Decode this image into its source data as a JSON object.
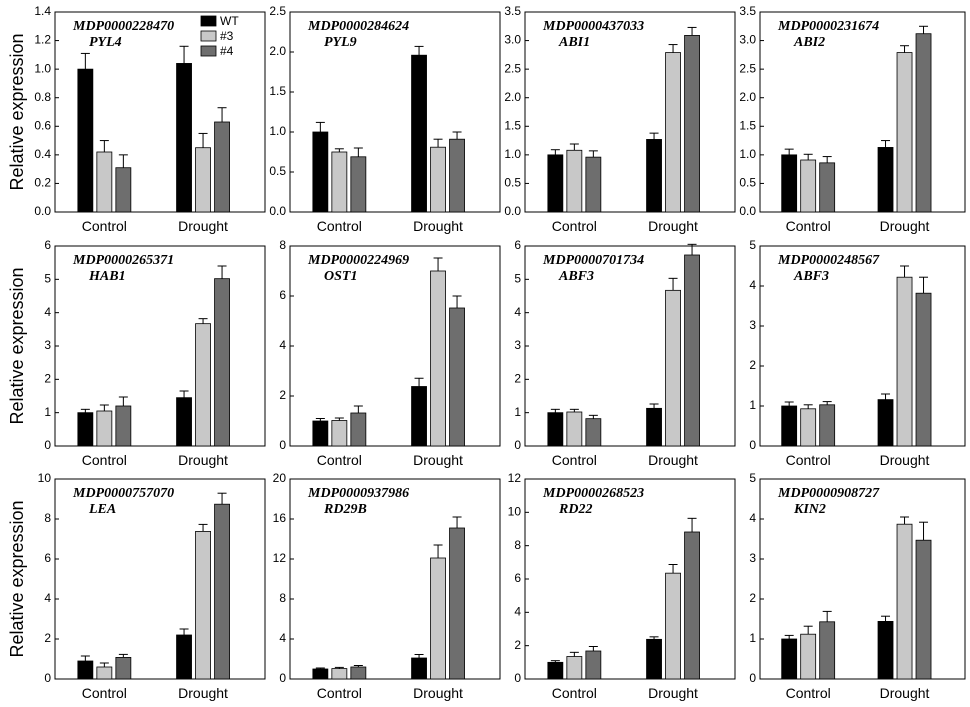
{
  "figure": {
    "ylabel": "Relative expression",
    "categories": [
      "Control",
      "Drought"
    ],
    "legend": [
      "WT",
      "#3",
      "#4"
    ],
    "colors": [
      "#000000",
      "#c8c8c8",
      "#6e6e6e"
    ]
  },
  "chart_data": [
    {
      "type": "bar",
      "gene_id": "MDP0000228470",
      "gene": "PYL4",
      "ylim": [
        0,
        1.4
      ],
      "yticks": [
        "0.0",
        "0.2",
        "0.4",
        "0.6",
        "0.8",
        "1.0",
        "1.2",
        "1.4"
      ],
      "categories": [
        "Control",
        "Drought"
      ],
      "series": [
        {
          "name": "WT",
          "values": [
            1.0,
            1.04
          ],
          "errors": [
            0.11,
            0.12
          ]
        },
        {
          "name": "#3",
          "values": [
            0.42,
            0.45
          ],
          "errors": [
            0.08,
            0.1
          ]
        },
        {
          "name": "#4",
          "values": [
            0.31,
            0.63
          ],
          "errors": [
            0.09,
            0.1
          ]
        }
      ]
    },
    {
      "type": "bar",
      "gene_id": "MDP0000284624",
      "gene": "PYL9",
      "ylim": [
        0,
        2.5
      ],
      "yticks": [
        "0.0",
        "0.5",
        "1.0",
        "1.5",
        "2.0",
        "2.5"
      ],
      "categories": [
        "Control",
        "Drought"
      ],
      "series": [
        {
          "name": "WT",
          "values": [
            1.0,
            1.96
          ],
          "errors": [
            0.12,
            0.11
          ]
        },
        {
          "name": "#3",
          "values": [
            0.75,
            0.81
          ],
          "errors": [
            0.04,
            0.1
          ]
        },
        {
          "name": "#4",
          "values": [
            0.69,
            0.91
          ],
          "errors": [
            0.11,
            0.09
          ]
        }
      ]
    },
    {
      "type": "bar",
      "gene_id": "MDP0000437033",
      "gene": "ABI1",
      "ylim": [
        0,
        3.5
      ],
      "yticks": [
        "0.0",
        "0.5",
        "1.0",
        "1.5",
        "2.0",
        "2.5",
        "3.0",
        "3.5"
      ],
      "categories": [
        "Control",
        "Drought"
      ],
      "series": [
        {
          "name": "WT",
          "values": [
            1.0,
            1.27
          ],
          "errors": [
            0.09,
            0.11
          ]
        },
        {
          "name": "#3",
          "values": [
            1.08,
            2.79
          ],
          "errors": [
            0.11,
            0.14
          ]
        },
        {
          "name": "#4",
          "values": [
            0.96,
            3.09
          ],
          "errors": [
            0.11,
            0.14
          ]
        }
      ]
    },
    {
      "type": "bar",
      "gene_id": "MDP0000231674",
      "gene": "ABI2",
      "ylim": [
        0,
        3.5
      ],
      "yticks": [
        "0.0",
        "0.5",
        "1.0",
        "1.5",
        "2.0",
        "2.5",
        "3.0",
        "3.5"
      ],
      "categories": [
        "Control",
        "Drought"
      ],
      "series": [
        {
          "name": "WT",
          "values": [
            1.0,
            1.13
          ],
          "errors": [
            0.1,
            0.12
          ]
        },
        {
          "name": "#3",
          "values": [
            0.91,
            2.79
          ],
          "errors": [
            0.1,
            0.12
          ]
        },
        {
          "name": "#4",
          "values": [
            0.86,
            3.12
          ],
          "errors": [
            0.11,
            0.13
          ]
        }
      ]
    },
    {
      "type": "bar",
      "gene_id": "MDP0000265371",
      "gene": "HAB1",
      "ylim": [
        0,
        6
      ],
      "yticks": [
        "0",
        "1",
        "2",
        "3",
        "4",
        "5",
        "6"
      ],
      "categories": [
        "Control",
        "Drought"
      ],
      "series": [
        {
          "name": "WT",
          "values": [
            1.0,
            1.45
          ],
          "errors": [
            0.1,
            0.2
          ]
        },
        {
          "name": "#3",
          "values": [
            1.05,
            3.67
          ],
          "errors": [
            0.18,
            0.15
          ]
        },
        {
          "name": "#4",
          "values": [
            1.2,
            5.02
          ],
          "errors": [
            0.27,
            0.38
          ]
        }
      ]
    },
    {
      "type": "bar",
      "gene_id": "MDP0000224969",
      "gene": "OST1",
      "ylim": [
        0,
        8
      ],
      "yticks": [
        "0",
        "2",
        "4",
        "6",
        "8"
      ],
      "categories": [
        "Control",
        "Drought"
      ],
      "series": [
        {
          "name": "WT",
          "values": [
            1.0,
            2.38
          ],
          "errors": [
            0.1,
            0.33
          ]
        },
        {
          "name": "#3",
          "values": [
            1.02,
            7.0
          ],
          "errors": [
            0.1,
            0.52
          ]
        },
        {
          "name": "#4",
          "values": [
            1.32,
            5.52
          ],
          "errors": [
            0.28,
            0.48
          ]
        }
      ]
    },
    {
      "type": "bar",
      "gene_id": "MDP0000701734",
      "gene": "ABF3",
      "ylim": [
        0,
        6
      ],
      "yticks": [
        "0",
        "1",
        "2",
        "3",
        "4",
        "5",
        "6"
      ],
      "categories": [
        "Control",
        "Drought"
      ],
      "series": [
        {
          "name": "WT",
          "values": [
            1.0,
            1.13
          ],
          "errors": [
            0.1,
            0.13
          ]
        },
        {
          "name": "#3",
          "values": [
            1.02,
            4.67
          ],
          "errors": [
            0.08,
            0.36
          ]
        },
        {
          "name": "#4",
          "values": [
            0.82,
            5.73
          ],
          "errors": [
            0.1,
            0.32
          ]
        }
      ]
    },
    {
      "type": "bar",
      "gene_id": "MDP0000248567",
      "gene": "ABF3",
      "ylim": [
        0,
        5
      ],
      "yticks": [
        "0",
        "1",
        "2",
        "3",
        "4",
        "5"
      ],
      "categories": [
        "Control",
        "Drought"
      ],
      "series": [
        {
          "name": "WT",
          "values": [
            1.0,
            1.16
          ],
          "errors": [
            0.1,
            0.14
          ]
        },
        {
          "name": "#3",
          "values": [
            0.93,
            4.22
          ],
          "errors": [
            0.1,
            0.28
          ]
        },
        {
          "name": "#4",
          "values": [
            1.03,
            3.82
          ],
          "errors": [
            0.08,
            0.4
          ]
        }
      ]
    },
    {
      "type": "bar",
      "gene_id": "MDP0000757070",
      "gene": "LEA",
      "ylim": [
        0,
        10
      ],
      "yticks": [
        "0",
        "2",
        "4",
        "6",
        "8",
        "10"
      ],
      "categories": [
        "Control",
        "Drought"
      ],
      "series": [
        {
          "name": "WT",
          "values": [
            0.9,
            2.2
          ],
          "errors": [
            0.25,
            0.3
          ]
        },
        {
          "name": "#3",
          "values": [
            0.6,
            7.38
          ],
          "errors": [
            0.2,
            0.35
          ]
        },
        {
          "name": "#4",
          "values": [
            1.08,
            8.74
          ],
          "errors": [
            0.15,
            0.55
          ]
        }
      ]
    },
    {
      "type": "bar",
      "gene_id": "MDP0000937986",
      "gene": "RD29B",
      "ylim": [
        0,
        20
      ],
      "yticks": [
        "0",
        "4",
        "8",
        "12",
        "16",
        "20"
      ],
      "categories": [
        "Control",
        "Drought"
      ],
      "series": [
        {
          "name": "WT",
          "values": [
            1.0,
            2.1
          ],
          "errors": [
            0.1,
            0.35
          ]
        },
        {
          "name": "#3",
          "values": [
            1.04,
            12.1
          ],
          "errors": [
            0.12,
            1.3
          ]
        },
        {
          "name": "#4",
          "values": [
            1.2,
            15.1
          ],
          "errors": [
            0.15,
            1.1
          ]
        }
      ]
    },
    {
      "type": "bar",
      "gene_id": "MDP0000268523",
      "gene": "RD22",
      "ylim": [
        0,
        12
      ],
      "yticks": [
        "0",
        "2",
        "4",
        "6",
        "8",
        "10",
        "12"
      ],
      "categories": [
        "Control",
        "Drought"
      ],
      "series": [
        {
          "name": "WT",
          "values": [
            1.0,
            2.38
          ],
          "errors": [
            0.1,
            0.15
          ]
        },
        {
          "name": "#3",
          "values": [
            1.35,
            6.35
          ],
          "errors": [
            0.25,
            0.52
          ]
        },
        {
          "name": "#4",
          "values": [
            1.68,
            8.82
          ],
          "errors": [
            0.27,
            0.82
          ]
        }
      ]
    },
    {
      "type": "bar",
      "gene_id": "MDP0000908727",
      "gene": "KIN2",
      "ylim": [
        0,
        5
      ],
      "yticks": [
        "0",
        "1",
        "2",
        "3",
        "4",
        "5"
      ],
      "categories": [
        "Control",
        "Drought"
      ],
      "series": [
        {
          "name": "WT",
          "values": [
            1.0,
            1.44
          ],
          "errors": [
            0.09,
            0.13
          ]
        },
        {
          "name": "#3",
          "values": [
            1.12,
            3.87
          ],
          "errors": [
            0.2,
            0.18
          ]
        },
        {
          "name": "#4",
          "values": [
            1.43,
            3.47
          ],
          "errors": [
            0.26,
            0.45
          ]
        }
      ]
    }
  ]
}
